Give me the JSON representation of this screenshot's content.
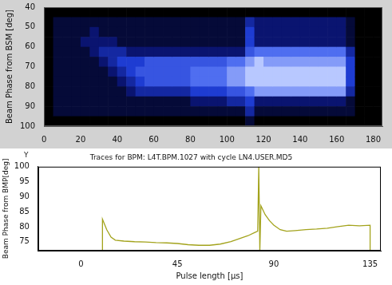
{
  "chart_data": [
    {
      "type": "heatmap",
      "y_label": "Beam Phase from BSM [deg]",
      "xlim": [
        0,
        185
      ],
      "xticks": [
        0,
        20,
        40,
        60,
        80,
        100,
        120,
        140,
        160,
        180
      ],
      "ylim": [
        100,
        40
      ],
      "yticks": [
        40,
        50,
        60,
        70,
        80,
        90,
        100
      ],
      "grid": false,
      "x_bins": [
        0,
        5,
        10,
        15,
        20,
        25,
        30,
        35,
        40,
        45,
        50,
        55,
        60,
        65,
        70,
        75,
        80,
        85,
        90,
        95,
        100,
        105,
        110,
        115,
        120,
        125,
        130,
        135,
        140,
        145,
        150,
        155,
        160,
        165,
        170,
        175,
        180,
        185
      ],
      "y_bins": [
        40,
        45,
        50,
        55,
        60,
        65,
        70,
        75,
        80,
        85,
        90,
        95,
        100
      ],
      "zlim": [
        0,
        8
      ],
      "cells": [
        [
          0,
          0,
          0,
          0,
          0,
          0,
          0,
          0,
          0,
          0,
          0,
          0
        ],
        [
          0,
          1,
          1,
          1,
          1,
          1,
          1,
          1,
          1,
          1,
          1,
          0
        ],
        [
          0,
          1,
          1,
          1,
          1,
          1,
          1,
          1,
          1,
          1,
          1,
          0
        ],
        [
          0,
          1,
          1,
          1,
          1,
          1,
          1,
          1,
          1,
          1,
          1,
          0
        ],
        [
          0,
          1,
          1,
          2,
          1,
          1,
          1,
          1,
          1,
          1,
          1,
          0
        ],
        [
          0,
          1,
          2,
          2,
          2,
          1,
          1,
          1,
          1,
          1,
          1,
          0
        ],
        [
          0,
          1,
          1,
          2,
          3,
          2,
          1,
          1,
          1,
          1,
          1,
          0
        ],
        [
          0,
          1,
          1,
          2,
          3,
          3,
          2,
          1,
          1,
          1,
          1,
          0
        ],
        [
          0,
          1,
          1,
          1,
          3,
          4,
          3,
          2,
          1,
          1,
          1,
          0
        ],
        [
          0,
          1,
          1,
          1,
          2,
          4,
          4,
          3,
          2,
          1,
          1,
          0
        ],
        [
          0,
          1,
          1,
          1,
          2,
          4,
          5,
          4,
          3,
          1,
          1,
          0
        ],
        [
          0,
          1,
          1,
          1,
          2,
          5,
          5,
          5,
          3,
          1,
          1,
          0
        ],
        [
          0,
          1,
          1,
          1,
          2,
          5,
          5,
          5,
          3,
          1,
          1,
          0
        ],
        [
          0,
          1,
          1,
          1,
          2,
          5,
          5,
          5,
          3,
          1,
          1,
          0
        ],
        [
          0,
          1,
          1,
          1,
          2,
          5,
          5,
          5,
          3,
          1,
          1,
          0
        ],
        [
          0,
          1,
          1,
          1,
          2,
          5,
          5,
          5,
          3,
          1,
          1,
          0
        ],
        [
          0,
          1,
          1,
          1,
          2,
          5,
          6,
          6,
          4,
          2,
          1,
          0
        ],
        [
          0,
          1,
          1,
          1,
          2,
          5,
          6,
          6,
          4,
          2,
          1,
          0
        ],
        [
          0,
          1,
          1,
          1,
          2,
          5,
          6,
          6,
          4,
          2,
          1,
          0
        ],
        [
          0,
          1,
          1,
          1,
          2,
          5,
          6,
          6,
          4,
          2,
          1,
          0
        ],
        [
          0,
          1,
          1,
          1,
          2,
          6,
          7,
          7,
          5,
          3,
          1,
          0
        ],
        [
          0,
          1,
          1,
          1,
          2,
          6,
          7,
          7,
          5,
          3,
          1,
          0
        ],
        [
          0,
          3,
          4,
          4,
          5,
          7,
          8,
          8,
          6,
          4,
          3,
          1
        ],
        [
          0,
          2,
          2,
          2,
          6,
          8,
          8,
          8,
          7,
          2,
          1,
          0
        ],
        [
          0,
          2,
          2,
          2,
          6,
          7,
          8,
          8,
          7,
          2,
          1,
          0
        ],
        [
          0,
          2,
          2,
          2,
          6,
          7,
          8,
          8,
          7,
          2,
          1,
          0
        ],
        [
          0,
          2,
          2,
          2,
          6,
          7,
          8,
          8,
          7,
          2,
          1,
          0
        ],
        [
          0,
          2,
          2,
          2,
          6,
          7,
          8,
          8,
          7,
          2,
          1,
          0
        ],
        [
          0,
          2,
          2,
          2,
          6,
          7,
          8,
          8,
          7,
          2,
          1,
          0
        ],
        [
          0,
          2,
          2,
          2,
          6,
          7,
          8,
          8,
          7,
          2,
          1,
          0
        ],
        [
          0,
          2,
          2,
          2,
          6,
          7,
          8,
          8,
          7,
          2,
          1,
          0
        ],
        [
          0,
          2,
          2,
          2,
          6,
          7,
          8,
          8,
          7,
          2,
          1,
          0
        ],
        [
          0,
          2,
          2,
          2,
          6,
          7,
          8,
          8,
          7,
          2,
          1,
          0
        ],
        [
          0,
          1,
          1,
          1,
          3,
          4,
          4,
          4,
          3,
          1,
          1,
          0
        ],
        [
          0,
          0,
          0,
          0,
          0,
          0,
          0,
          0,
          0,
          0,
          0,
          0
        ],
        [
          0,
          0,
          0,
          0,
          0,
          0,
          0,
          0,
          0,
          0,
          0,
          0
        ],
        [
          0,
          0,
          0,
          0,
          0,
          0,
          0,
          0,
          0,
          0,
          0,
          0
        ]
      ]
    },
    {
      "type": "line",
      "title": "Traces for BPM: L4T.BPM.1027 with cycle LN4.USER.MD5",
      "x_label": "Pulse length [µs]",
      "y_label": "Beam Phase from BMP[deg]",
      "annotations": [
        "Y"
      ],
      "xlim": [
        -20,
        140
      ],
      "xticks": [
        0,
        45,
        90,
        135
      ],
      "ylim": [
        72,
        100
      ],
      "yticks": [
        75,
        80,
        85,
        90,
        95,
        100
      ],
      "grid": false,
      "color": "#a3a31c",
      "marker": "none",
      "line_style": "solid",
      "x": [
        10,
        10,
        12,
        14,
        16,
        20,
        25,
        30,
        35,
        40,
        45,
        50,
        55,
        60,
        65,
        70,
        74,
        78,
        81,
        82.5,
        83,
        83.5,
        84,
        86,
        88,
        90,
        93,
        96,
        100,
        105,
        110,
        115,
        120,
        125,
        130,
        135,
        135
      ],
      "values": [
        72,
        82.5,
        79,
        76.5,
        75.5,
        75.2,
        75,
        74.9,
        74.7,
        74.6,
        74.4,
        74,
        73.8,
        73.8,
        74.2,
        75,
        76,
        77,
        78,
        78.5,
        100,
        72,
        87,
        84,
        82,
        80.5,
        79,
        78.5,
        78.7,
        79,
        79.2,
        79.5,
        80,
        80.5,
        80.3,
        80.5,
        72
      ]
    }
  ]
}
